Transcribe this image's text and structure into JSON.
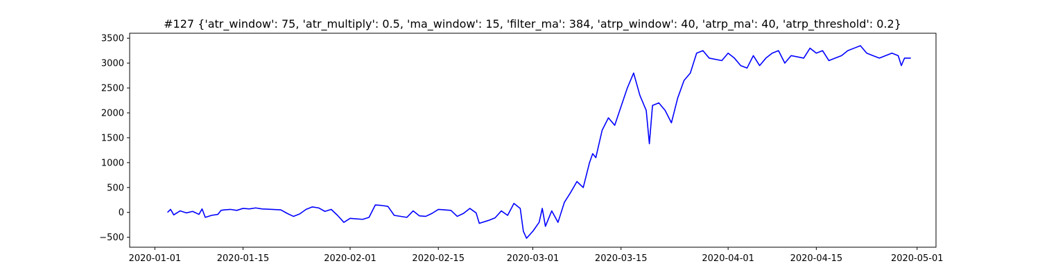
{
  "chart_data": {
    "type": "line",
    "title": "#127 {'atr_window': 75, 'atr_multiply': 0.5, 'ma_window': 15, 'filter_ma': 384, 'atrp_window': 40, 'atrp_ma': 40, 'atrp_threshold': 0.2}",
    "xlabel": "",
    "ylabel": "",
    "x_axis_type": "date",
    "xlim": [
      "2019-12-28",
      "2020-05-04"
    ],
    "ylim": [
      -700,
      3600
    ],
    "x_ticks": [
      "2020-01-01",
      "2020-01-15",
      "2020-02-01",
      "2020-02-15",
      "2020-03-01",
      "2020-03-15",
      "2020-04-01",
      "2020-04-15",
      "2020-05-01"
    ],
    "y_ticks": [
      -500,
      0,
      500,
      1000,
      1500,
      2000,
      2500,
      3000,
      3500
    ],
    "grid": false,
    "legend": "none",
    "line_color": "#0000ff",
    "series": [
      {
        "x": [
          "2020-01-03",
          "2020-01-03",
          "2020-01-04",
          "2020-01-05",
          "2020-01-06",
          "2020-01-07",
          "2020-01-08",
          "2020-01-08",
          "2020-01-09",
          "2020-01-10",
          "2020-01-11",
          "2020-01-11",
          "2020-01-12",
          "2020-01-13",
          "2020-01-14",
          "2020-01-15",
          "2020-01-16",
          "2020-01-17",
          "2020-01-18",
          "2020-01-21",
          "2020-01-22",
          "2020-01-23",
          "2020-01-24",
          "2020-01-25",
          "2020-01-26",
          "2020-01-27",
          "2020-01-28",
          "2020-01-29",
          "2020-01-30",
          "2020-01-31",
          "2020-02-01",
          "2020-02-03",
          "2020-02-04",
          "2020-02-05",
          "2020-02-06",
          "2020-02-07",
          "2020-02-08",
          "2020-02-10",
          "2020-02-11",
          "2020-02-12",
          "2020-02-13",
          "2020-02-14",
          "2020-02-15",
          "2020-02-17",
          "2020-02-18",
          "2020-02-19",
          "2020-02-20",
          "2020-02-21",
          "2020-02-21",
          "2020-02-23",
          "2020-02-24",
          "2020-02-25",
          "2020-02-26",
          "2020-02-27",
          "2020-02-28",
          "2020-02-28",
          "2020-02-29",
          "2020-03-01",
          "2020-03-02",
          "2020-03-02",
          "2020-03-03",
          "2020-03-04",
          "2020-03-05",
          "2020-03-06",
          "2020-03-07",
          "2020-03-08",
          "2020-03-09",
          "2020-03-10",
          "2020-03-10",
          "2020-03-11",
          "2020-03-12",
          "2020-03-13",
          "2020-03-14",
          "2020-03-16",
          "2020-03-17",
          "2020-03-18",
          "2020-03-19",
          "2020-03-19",
          "2020-03-20",
          "2020-03-21",
          "2020-03-22",
          "2020-03-23",
          "2020-03-24",
          "2020-03-25",
          "2020-03-26",
          "2020-03-27",
          "2020-03-28",
          "2020-03-29",
          "2020-03-31",
          "2020-04-01",
          "2020-04-02",
          "2020-04-03",
          "2020-04-04",
          "2020-04-05",
          "2020-04-06",
          "2020-04-07",
          "2020-04-08",
          "2020-04-09",
          "2020-04-10",
          "2020-04-11",
          "2020-04-13",
          "2020-04-14",
          "2020-04-15",
          "2020-04-16",
          "2020-04-17",
          "2020-04-18",
          "2020-04-19",
          "2020-04-20",
          "2020-04-21",
          "2020-04-22",
          "2020-04-23",
          "2020-04-24",
          "2020-04-25",
          "2020-04-27",
          "2020-04-28",
          "2020-04-28",
          "2020-04-29",
          "2020-04-30"
        ],
        "y": [
          0,
          60,
          -50,
          30,
          -10,
          20,
          -40,
          70,
          -100,
          -60,
          -40,
          40,
          50,
          60,
          40,
          80,
          70,
          90,
          70,
          50,
          -20,
          -80,
          -30,
          60,
          110,
          90,
          20,
          60,
          -60,
          -200,
          -120,
          -140,
          -100,
          150,
          140,
          120,
          -60,
          -100,
          30,
          -70,
          -80,
          -20,
          60,
          40,
          -80,
          -20,
          80,
          -10,
          -220,
          -160,
          -110,
          30,
          -60,
          180,
          80,
          -380,
          -520,
          -380,
          -200,
          80,
          -280,
          30,
          -200,
          200,
          400,
          620,
          500,
          1000,
          1180,
          1100,
          1650,
          1900,
          1750,
          2500,
          2800,
          2350,
          2050,
          1380,
          2150,
          2200,
          2050,
          1800,
          2300,
          2650,
          2800,
          3200,
          3250,
          3100,
          3050,
          3200,
          3100,
          2950,
          2900,
          3150,
          2950,
          3100,
          3200,
          3250,
          3000,
          3150,
          3100,
          3300,
          3200,
          3250,
          3050,
          3100,
          3150,
          3250,
          3300,
          3350,
          3200,
          3150,
          3100,
          3200,
          3150,
          2950,
          3100,
          3100
        ]
      }
    ]
  }
}
